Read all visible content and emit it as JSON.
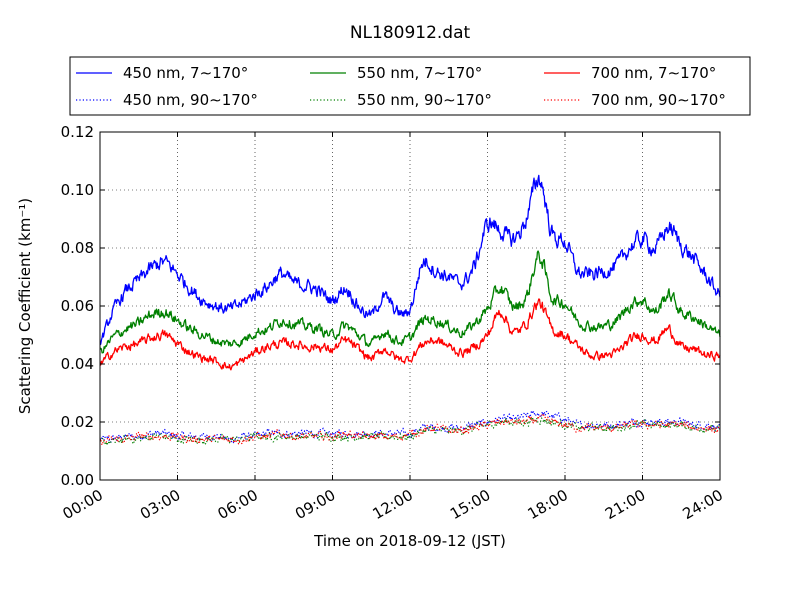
{
  "chart_data": {
    "type": "line",
    "title": "NL180912.dat",
    "xlabel": "Time on 2018-09-12 (JST)",
    "ylabel": "Scattering Coefficient (km⁻¹)",
    "xlim": [
      "00:00",
      "24:00"
    ],
    "ylim": [
      0.0,
      0.12
    ],
    "x_tick_labels": [
      "00:00",
      "03:00",
      "06:00",
      "09:00",
      "12:00",
      "15:00",
      "18:00",
      "21:00",
      "24:00"
    ],
    "y_tick_labels": [
      "0.00",
      "0.02",
      "0.04",
      "0.06",
      "0.08",
      "0.10",
      "0.12"
    ],
    "grid": true,
    "legend_placement": "top, above plot, 3 columns",
    "x_hours": [
      0,
      0.5,
      1,
      1.5,
      2,
      2.5,
      3,
      3.5,
      4,
      4.5,
      5,
      5.5,
      6,
      6.5,
      7,
      7.5,
      8,
      8.5,
      9,
      9.5,
      10,
      10.5,
      11,
      11.5,
      12,
      12.5,
      13,
      13.5,
      14,
      14.5,
      15,
      15.5,
      16,
      16.5,
      17,
      17.5,
      18,
      18.5,
      19,
      19.5,
      20,
      20.5,
      21,
      21.5,
      22,
      22.5,
      23,
      23.5,
      24
    ],
    "series": [
      {
        "name": "450 nm, 7∼170°",
        "color": "#0000ff",
        "style": "solid",
        "values": [
          0.048,
          0.058,
          0.065,
          0.069,
          0.073,
          0.075,
          0.071,
          0.066,
          0.062,
          0.06,
          0.059,
          0.061,
          0.064,
          0.067,
          0.071,
          0.068,
          0.067,
          0.065,
          0.062,
          0.066,
          0.06,
          0.057,
          0.063,
          0.058,
          0.059,
          0.075,
          0.072,
          0.07,
          0.068,
          0.074,
          0.088,
          0.086,
          0.083,
          0.09,
          0.104,
          0.085,
          0.082,
          0.072,
          0.071,
          0.072,
          0.074,
          0.08,
          0.083,
          0.08,
          0.087,
          0.081,
          0.076,
          0.07,
          0.064
        ]
      },
      {
        "name": "550 nm, 7∼170°",
        "color": "#008000",
        "style": "solid",
        "values": [
          0.044,
          0.049,
          0.052,
          0.054,
          0.057,
          0.058,
          0.055,
          0.052,
          0.05,
          0.048,
          0.047,
          0.048,
          0.051,
          0.052,
          0.055,
          0.054,
          0.053,
          0.052,
          0.05,
          0.053,
          0.05,
          0.047,
          0.051,
          0.048,
          0.049,
          0.055,
          0.055,
          0.053,
          0.051,
          0.054,
          0.059,
          0.066,
          0.06,
          0.063,
          0.077,
          0.063,
          0.061,
          0.055,
          0.053,
          0.053,
          0.055,
          0.06,
          0.062,
          0.058,
          0.064,
          0.058,
          0.056,
          0.053,
          0.05
        ]
      },
      {
        "name": "700 nm, 7∼170°",
        "color": "#ff0000",
        "style": "solid",
        "values": [
          0.04,
          0.044,
          0.046,
          0.047,
          0.049,
          0.05,
          0.047,
          0.044,
          0.042,
          0.041,
          0.039,
          0.041,
          0.044,
          0.046,
          0.047,
          0.047,
          0.046,
          0.046,
          0.045,
          0.048,
          0.045,
          0.042,
          0.045,
          0.042,
          0.042,
          0.047,
          0.048,
          0.046,
          0.044,
          0.046,
          0.05,
          0.058,
          0.051,
          0.054,
          0.061,
          0.052,
          0.05,
          0.046,
          0.043,
          0.043,
          0.044,
          0.048,
          0.05,
          0.048,
          0.052,
          0.046,
          0.045,
          0.043,
          0.043
        ]
      },
      {
        "name": "450 nm, 90∼170°",
        "color": "#0000ff",
        "style": "dotted",
        "values": [
          0.014,
          0.014,
          0.015,
          0.015,
          0.016,
          0.016,
          0.015,
          0.015,
          0.015,
          0.015,
          0.014,
          0.015,
          0.015,
          0.016,
          0.016,
          0.016,
          0.016,
          0.016,
          0.016,
          0.016,
          0.016,
          0.016,
          0.016,
          0.016,
          0.016,
          0.018,
          0.018,
          0.018,
          0.018,
          0.019,
          0.02,
          0.021,
          0.021,
          0.022,
          0.023,
          0.022,
          0.021,
          0.019,
          0.019,
          0.019,
          0.019,
          0.02,
          0.02,
          0.02,
          0.02,
          0.02,
          0.019,
          0.019,
          0.018
        ]
      },
      {
        "name": "550 nm, 90∼170°",
        "color": "#008000",
        "style": "dotted",
        "values": [
          0.013,
          0.013,
          0.014,
          0.014,
          0.015,
          0.015,
          0.014,
          0.014,
          0.014,
          0.014,
          0.014,
          0.014,
          0.015,
          0.015,
          0.015,
          0.015,
          0.015,
          0.015,
          0.015,
          0.015,
          0.015,
          0.015,
          0.015,
          0.015,
          0.015,
          0.017,
          0.017,
          0.017,
          0.017,
          0.018,
          0.019,
          0.02,
          0.02,
          0.02,
          0.021,
          0.02,
          0.019,
          0.018,
          0.018,
          0.018,
          0.018,
          0.019,
          0.019,
          0.019,
          0.019,
          0.019,
          0.018,
          0.018,
          0.017
        ]
      },
      {
        "name": "700 nm, 90∼170°",
        "color": "#ff0000",
        "style": "dotted",
        "values": [
          0.013,
          0.014,
          0.014,
          0.015,
          0.015,
          0.015,
          0.015,
          0.014,
          0.014,
          0.014,
          0.014,
          0.014,
          0.015,
          0.015,
          0.016,
          0.015,
          0.015,
          0.015,
          0.015,
          0.016,
          0.015,
          0.015,
          0.015,
          0.015,
          0.016,
          0.017,
          0.018,
          0.017,
          0.017,
          0.018,
          0.019,
          0.02,
          0.02,
          0.02,
          0.021,
          0.02,
          0.019,
          0.018,
          0.018,
          0.018,
          0.018,
          0.019,
          0.019,
          0.019,
          0.019,
          0.019,
          0.018,
          0.018,
          0.017
        ]
      }
    ]
  }
}
